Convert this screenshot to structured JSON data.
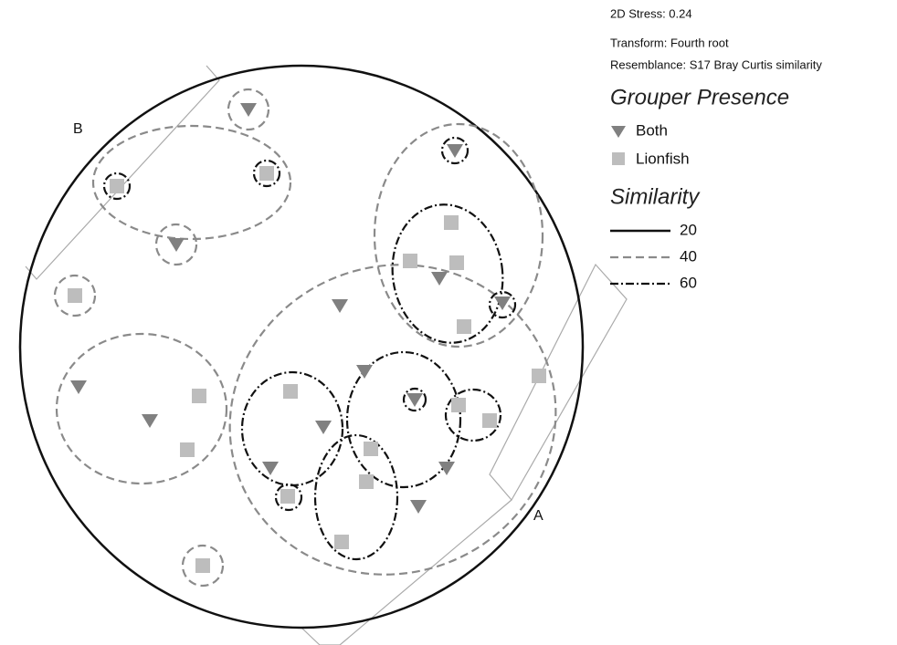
{
  "header": {
    "stress": "2D Stress: 0.24",
    "transform": "Transform: Fourth root",
    "resemblance": "Resemblance: S17 Bray Curtis similarity"
  },
  "legend": {
    "grouper_title": "Grouper Presence",
    "grouper_items": [
      "Both",
      "Lionfish"
    ],
    "similarity_title": "Similarity",
    "similarity_items": [
      "20",
      "40",
      "60"
    ]
  },
  "labels": [
    "A",
    "B"
  ]
}
